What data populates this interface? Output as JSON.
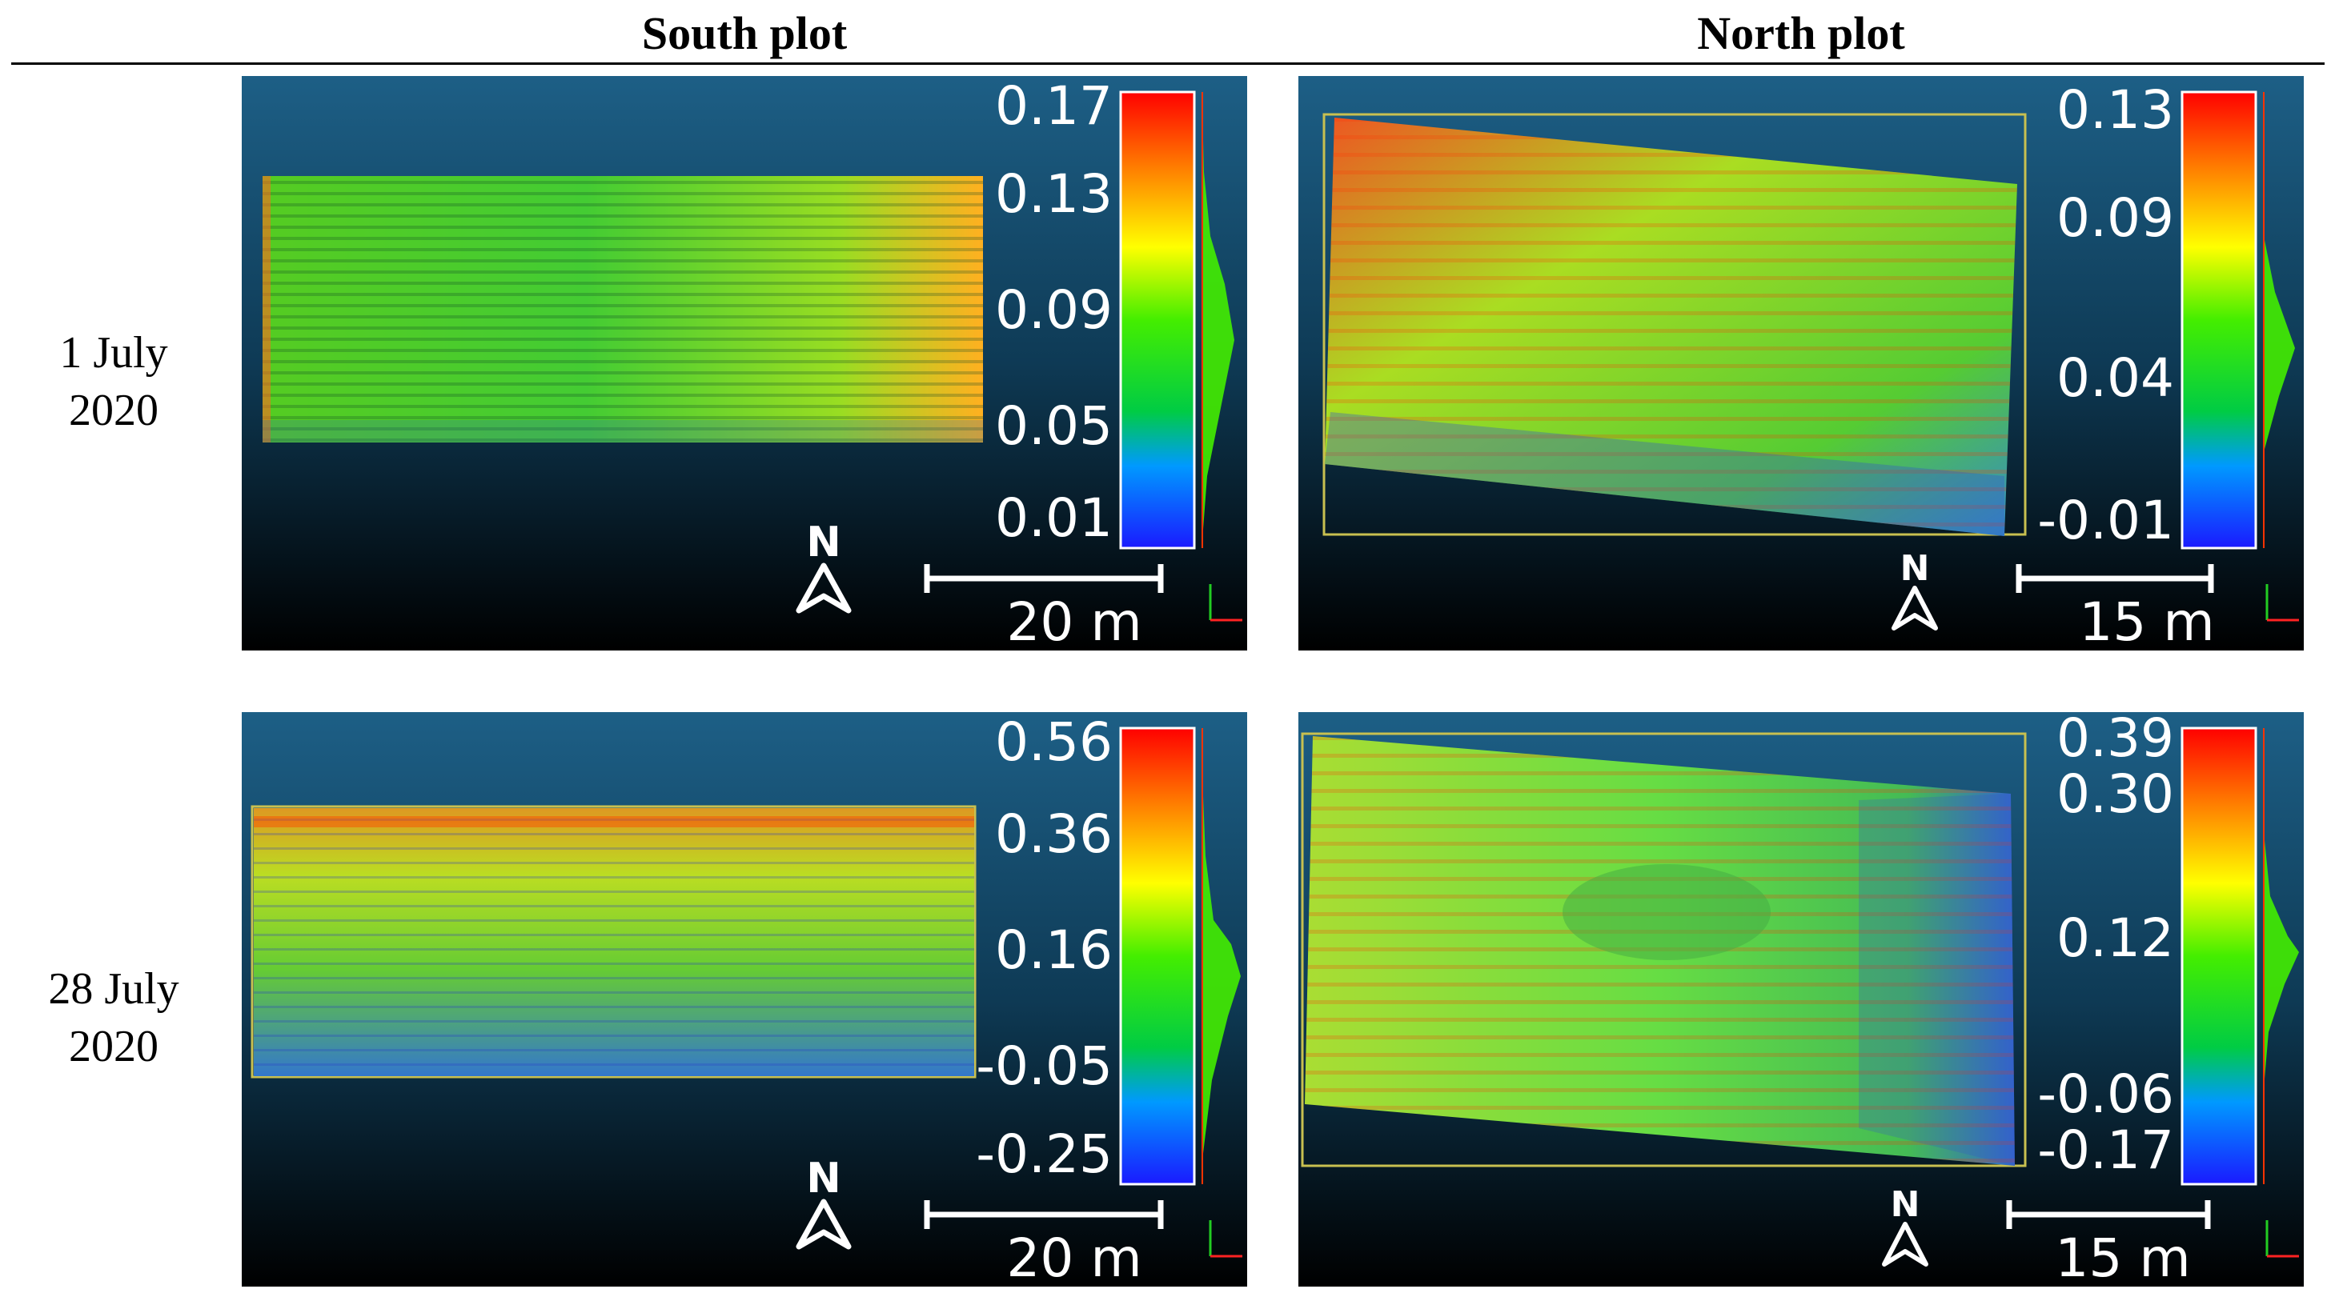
{
  "headers": {
    "south": "South plot",
    "north": "North plot"
  },
  "rows": [
    {
      "label_line1": "1 July",
      "label_line2": "2020"
    },
    {
      "label_line1": "28 July",
      "label_line2": "2020"
    }
  ],
  "panels": [
    {
      "id": "south-jul1",
      "scale_bar": "20 m",
      "compass": "N",
      "ticks": [
        "0.17",
        "0.13",
        "0.09",
        "0.05",
        "0.01"
      ]
    },
    {
      "id": "north-jul1",
      "scale_bar": "15 m",
      "compass": "N",
      "ticks": [
        "0.13",
        "0.09",
        "0.04",
        "-0.01"
      ]
    },
    {
      "id": "south-jul28",
      "scale_bar": "20 m",
      "compass": "N",
      "ticks": [
        "0.56",
        "0.36",
        "0.16",
        "-0.05",
        "-0.25"
      ]
    },
    {
      "id": "north-jul28",
      "scale_bar": "15 m",
      "compass": "N",
      "ticks": [
        "0.39",
        "0.30",
        "0.12",
        "-0.06",
        "-0.17"
      ]
    }
  ],
  "colors": {
    "background_top": "#1d5f86",
    "background_bottom": "#000000",
    "field_green": "#33cc22",
    "field_yellow": "#ccdd22",
    "field_red": "#ff3300",
    "field_blue": "#2233cc",
    "border_yellow": "#c8c050"
  }
}
